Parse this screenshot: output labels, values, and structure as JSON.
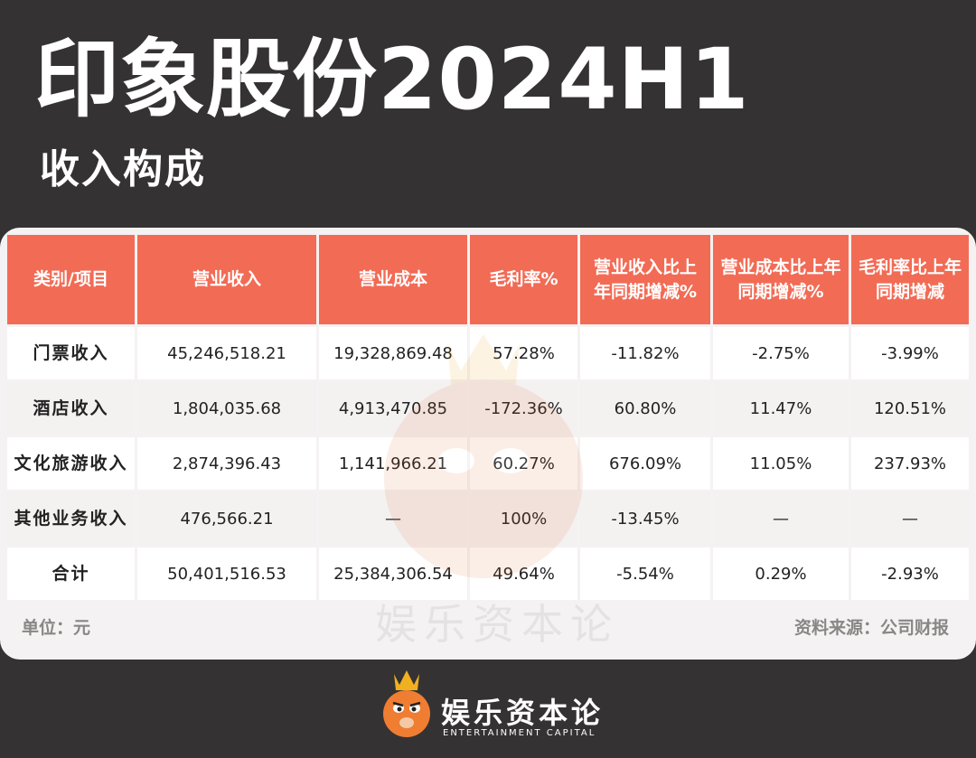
{
  "header": {
    "title": "印象股份2024H1",
    "subtitle": "收入构成"
  },
  "table": {
    "columns": [
      "类别/项目",
      "营业收入",
      "营业成本",
      "毛利率%",
      "营业收入比上年同期增减%",
      "营业成本比上年同期增减%",
      "毛利率比上年同期增减"
    ],
    "rows": [
      [
        "门票收入",
        "45,246,518.21",
        "19,328,869.48",
        "57.28%",
        "-11.82%",
        "-2.75%",
        "-3.99%"
      ],
      [
        "酒店收入",
        "1,804,035.68",
        "4,913,470.85",
        "-172.36%",
        "60.80%",
        "11.47%",
        "120.51%"
      ],
      [
        "文化旅游收入",
        "2,874,396.43",
        "1,141,966.21",
        "60.27%",
        "676.09%",
        "11.05%",
        "237.93%"
      ],
      [
        "其他业务收入",
        "476,566.21",
        "—",
        "100%",
        "-13.45%",
        "—",
        "—"
      ],
      [
        "合计",
        "50,401,516.53",
        "25,384,306.54",
        "49.64%",
        "-5.54%",
        "0.29%",
        "-2.93%"
      ]
    ]
  },
  "notes": {
    "unit": "单位：元",
    "source": "资料来源：公司财报"
  },
  "branding": {
    "watermark_text": "娱乐资本论",
    "name": "娱乐资本论",
    "name_en": "ENTERTAINMENT CAPITAL",
    "logo_icon": "crowned-mascot-icon"
  },
  "colors": {
    "background": "#353233",
    "header_fill": "#f26b55",
    "card": "#f4f2f2"
  }
}
